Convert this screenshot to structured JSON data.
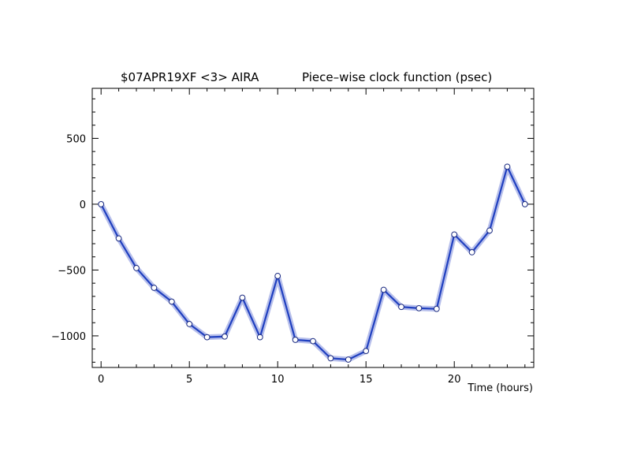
{
  "chart_data": {
    "type": "line",
    "title_left": "$07APR19XF <3>  AIRA",
    "title_right": "Piece–wise clock function (psec)",
    "xlabel": "Time (hours)",
    "ylabel": "",
    "xlim": [
      -0.5,
      24.5
    ],
    "ylim": [
      -1240,
      880
    ],
    "x_ticks": [
      0,
      5,
      10,
      15,
      20
    ],
    "y_ticks": [
      500,
      0,
      -500,
      -1000
    ],
    "x_tick_labels": [
      "0",
      "5",
      "10",
      "15",
      "20"
    ],
    "y_tick_labels": [
      "500",
      "0",
      "−500",
      "−1000"
    ],
    "grid": false,
    "series": [
      {
        "color": "#2040c0",
        "band_color": "#aab4e8",
        "x": [
          0,
          1,
          2,
          3,
          4,
          5,
          6,
          7,
          8,
          9,
          10,
          11,
          12,
          13,
          14,
          15,
          16,
          17,
          18,
          19,
          20,
          21,
          22,
          23,
          24
        ],
        "y": [
          0,
          -260,
          -485,
          -635,
          -740,
          -910,
          -1010,
          -1005,
          -710,
          -1010,
          -545,
          -1030,
          -1040,
          -1170,
          -1180,
          -1115,
          -650,
          -780,
          -790,
          -795,
          -230,
          -365,
          -200,
          285,
          0
        ]
      }
    ]
  }
}
